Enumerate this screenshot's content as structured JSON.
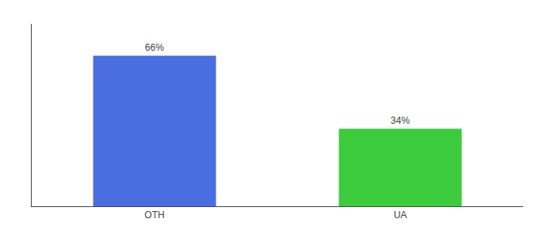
{
  "chart_data": {
    "type": "bar",
    "categories": [
      "OTH",
      "UA"
    ],
    "values": [
      66,
      34
    ],
    "value_labels": [
      "66%",
      "34%"
    ],
    "colors": [
      "#4a6ee0",
      "#3dcc3d"
    ],
    "ylim": [
      0,
      80
    ],
    "grid": false,
    "data_labels": true,
    "tick_labels": "x"
  }
}
